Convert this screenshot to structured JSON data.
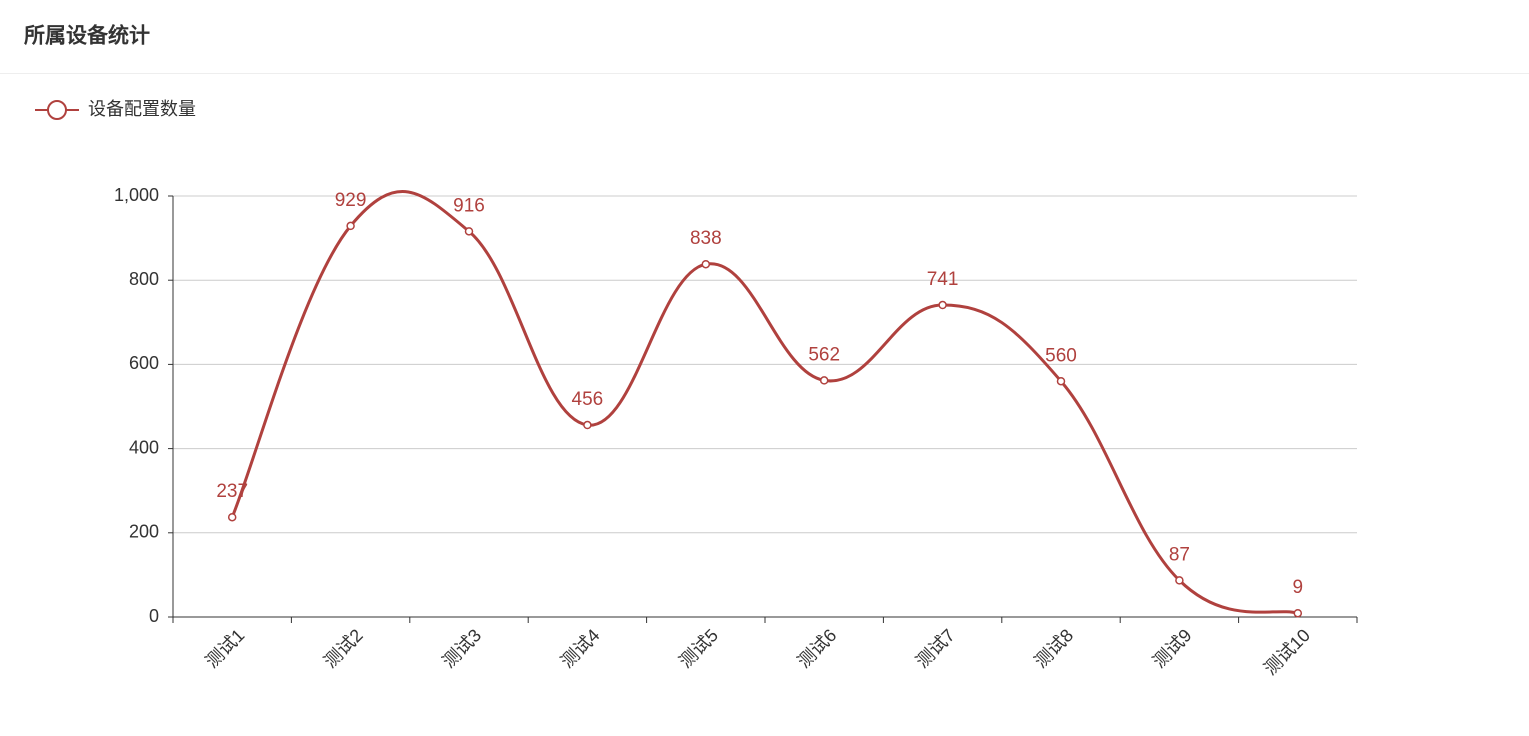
{
  "chart_data": {
    "type": "line",
    "title": "所属设备统计",
    "categories": [
      "测试1",
      "测试2",
      "测试3",
      "测试4",
      "测试5",
      "测试6",
      "测试7",
      "测试8",
      "测试9",
      "测试10"
    ],
    "series": [
      {
        "name": "设备配置数量",
        "color": "#b0413e",
        "values": [
          237,
          929,
          916,
          456,
          838,
          562,
          741,
          560,
          87,
          9
        ]
      }
    ],
    "ylim": [
      0,
      1000
    ],
    "yticks": [
      0,
      200,
      400,
      600,
      800,
      {
        "value": 1000,
        "label": "1,000"
      }
    ],
    "grid": true,
    "smooth": true,
    "data_labels": true
  }
}
